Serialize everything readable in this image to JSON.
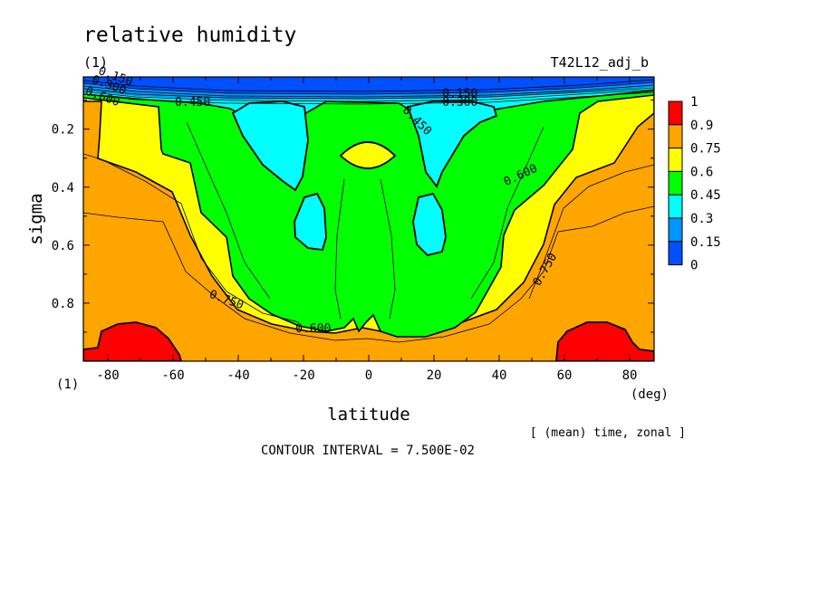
{
  "header": {
    "title": "relative humidity",
    "units": "(1)",
    "run_id": "T42L12_adj_b"
  },
  "footer": {
    "stat_note": "[ (mean) time, zonal ]",
    "contour_interval": "CONTOUR INTERVAL = 7.500E-02"
  },
  "chart_data": {
    "type": "contour",
    "title": "relative humidity",
    "xlabel": "latitude",
    "x_unit": "(deg)",
    "ylabel": "sigma",
    "y_unit": "(1)",
    "xlim": [
      -87.5,
      87.5
    ],
    "ylim": [
      1.0,
      0.02
    ],
    "y_inverted": true,
    "x_ticks": [
      -80,
      -60,
      -40,
      -20,
      0,
      20,
      40,
      60,
      80
    ],
    "y_ticks": [
      0.2,
      0.4,
      0.6,
      0.8
    ],
    "contour_interval": 0.075,
    "color_levels": [
      0,
      0.15,
      0.3,
      0.45,
      0.6,
      0.75,
      0.9,
      1
    ],
    "colorbar_labels": [
      "1",
      "0.9",
      "0.75",
      "0.6",
      "0.45",
      "0.3",
      "0.15",
      "0"
    ],
    "colors": {
      "band_0_0.15": "#0050ff",
      "band_0.15_0.3": "#0096ff",
      "band_0.3_0.45": "#00ffff",
      "band_0.45_0.6": "#00ff00",
      "band_0.6_0.75": "#ffff00",
      "band_0.75_0.9": "#ffa500",
      "band_0.9_1": "#ff0000"
    },
    "contour_labels": [
      {
        "text": "0.150",
        "lat": -78,
        "sigma": 0.03
      },
      {
        "text": "0.300",
        "lat": -80,
        "sigma": 0.06
      },
      {
        "text": "0.600",
        "lat": -82,
        "sigma": 0.1
      },
      {
        "text": "0.450",
        "lat": -54,
        "sigma": 0.12
      },
      {
        "text": "0.150",
        "lat": 28,
        "sigma": 0.09
      },
      {
        "text": "0.300",
        "lat": 28,
        "sigma": 0.12
      },
      {
        "text": "0.450",
        "lat": 14,
        "sigma": 0.18
      },
      {
        "text": "0.600",
        "lat": 47,
        "sigma": 0.37
      },
      {
        "text": "0.750",
        "lat": 55,
        "sigma": 0.69
      },
      {
        "text": "0.750",
        "lat": -44,
        "sigma": 0.8
      },
      {
        "text": "0.600",
        "lat": -17,
        "sigma": 0.9
      }
    ]
  }
}
